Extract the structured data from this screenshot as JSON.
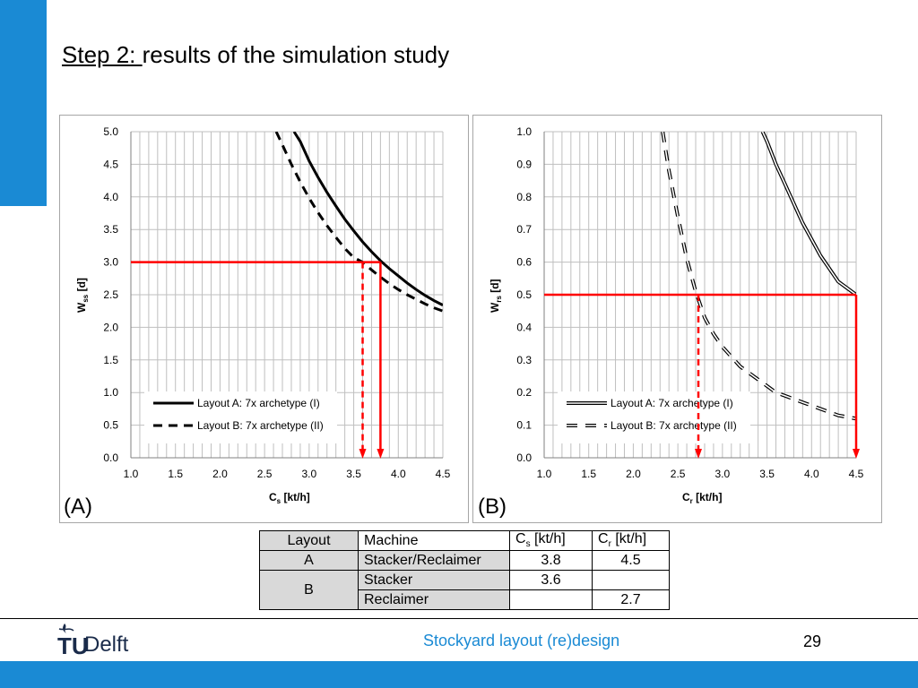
{
  "slide": {
    "title_prefix": "Step 2: ",
    "title_rest": "results of the simulation study",
    "footer_title": "Stockyard layout (re)design",
    "page_number": "29",
    "logo_t": "TU",
    "logo_text": "Delft",
    "label_a": "(A)",
    "label_b": "(B)"
  },
  "colors": {
    "accent": "#1a8ad4",
    "highlight": "#ff0000"
  },
  "chart_data": [
    {
      "type": "line",
      "panel": "A",
      "xlabel_main": "C",
      "xlabel_sub": "s",
      "xlabel_unit": " [kt/h]",
      "ylabel_main": "W",
      "ylabel_sub": "ss",
      "ylabel_unit": " [d]",
      "xlim": [
        1.0,
        4.5
      ],
      "ylim": [
        0.0,
        5.0
      ],
      "xticks": [
        "1.0",
        "1.5",
        "2.0",
        "2.5",
        "3.0",
        "3.5",
        "4.0",
        "4.5"
      ],
      "yticks": [
        "0.0",
        "0.5",
        "1.0",
        "1.5",
        "2.0",
        "2.5",
        "3.0",
        "3.5",
        "4.0",
        "4.5",
        "5.0"
      ],
      "grid": true,
      "legend_position": "bottom-left",
      "series": [
        {
          "name": "Layout A: 7x archetype (I)",
          "style": "solid",
          "x": [
            2.83,
            2.9,
            3.0,
            3.1,
            3.2,
            3.3,
            3.4,
            3.5,
            3.6,
            3.7,
            3.8,
            3.9,
            4.0,
            4.1,
            4.2,
            4.3,
            4.4,
            4.5
          ],
          "y": [
            5.0,
            4.85,
            4.55,
            4.3,
            4.07,
            3.86,
            3.66,
            3.48,
            3.31,
            3.16,
            3.02,
            2.9,
            2.79,
            2.68,
            2.58,
            2.49,
            2.41,
            2.34
          ]
        },
        {
          "name": "Layout B: 7x archetype (II)",
          "style": "dashed",
          "x": [
            2.63,
            2.7,
            2.8,
            2.9,
            3.0,
            3.1,
            3.2,
            3.3,
            3.4,
            3.5,
            3.6,
            3.7,
            3.8,
            3.9,
            4.0,
            4.1,
            4.2,
            4.3,
            4.4,
            4.5
          ],
          "y": [
            5.0,
            4.8,
            4.5,
            4.23,
            3.98,
            3.76,
            3.56,
            3.38,
            3.21,
            3.07,
            3.0,
            2.88,
            2.77,
            2.67,
            2.58,
            2.5,
            2.43,
            2.36,
            2.3,
            2.25
          ]
        }
      ],
      "annotations": {
        "target_y": 3.0,
        "marker_x": [
          3.6,
          3.8
        ],
        "marker_styles": [
          "dashed",
          "solid"
        ]
      }
    },
    {
      "type": "line",
      "panel": "B",
      "xlabel_main": "C",
      "xlabel_sub": "r",
      "xlabel_unit": " [kt/h]",
      "ylabel_main": "W",
      "ylabel_sub": "rs",
      "ylabel_unit": " [d]",
      "xlim": [
        1.0,
        4.5
      ],
      "ylim": [
        0.0,
        1.0
      ],
      "xticks": [
        "1.0",
        "1.5",
        "2.0",
        "2.5",
        "3.0",
        "3.5",
        "4.0",
        "4.5"
      ],
      "yticks": [
        "0.0",
        "0.1",
        "0.2",
        "0.3",
        "0.4",
        "0.5",
        "0.6",
        "0.7",
        "0.8",
        "0.9",
        "1.0"
      ],
      "grid": true,
      "legend_position": "bottom-left",
      "series": [
        {
          "name": "Layout A: 7x archetype (I)",
          "style": "double",
          "x": [
            3.45,
            3.5,
            3.6,
            3.7,
            3.8,
            3.9,
            4.0,
            4.1,
            4.2,
            4.3,
            4.4,
            4.5
          ],
          "y": [
            1.0,
            0.97,
            0.9,
            0.84,
            0.78,
            0.72,
            0.67,
            0.62,
            0.58,
            0.54,
            0.52,
            0.5
          ]
        },
        {
          "name": "Layout B: 7x archetype (II)",
          "style": "double-dashed",
          "x": [
            2.33,
            2.4,
            2.5,
            2.6,
            2.7,
            2.8,
            2.9,
            3.0,
            3.1,
            3.2,
            3.3,
            3.4,
            3.5,
            3.6,
            3.7,
            3.8,
            3.9,
            4.0,
            4.1,
            4.2,
            4.3,
            4.4,
            4.5
          ],
          "y": [
            1.0,
            0.88,
            0.74,
            0.61,
            0.51,
            0.43,
            0.38,
            0.34,
            0.31,
            0.28,
            0.26,
            0.24,
            0.22,
            0.2,
            0.19,
            0.18,
            0.17,
            0.16,
            0.15,
            0.14,
            0.13,
            0.125,
            0.12
          ]
        }
      ],
      "annotations": {
        "target_y": 0.5,
        "marker_x": [
          2.73,
          4.5
        ],
        "marker_styles": [
          "dashed",
          "solid"
        ]
      }
    }
  ],
  "table": {
    "headers": {
      "layout": "Layout",
      "machine": "Machine",
      "cs_main": "C",
      "cs_sub": "s",
      "cs_unit": " [kt/h]",
      "cr_main": "C",
      "cr_sub": "r",
      "cr_unit": " [kt/h]"
    },
    "rows": [
      {
        "layout": "A",
        "machine": "Stacker/Reclaimer",
        "cs": "3.8",
        "cr": "4.5"
      },
      {
        "layout": "B",
        "machine": "Stacker",
        "cs": "3.6",
        "cr": ""
      },
      {
        "layout": "",
        "machine": "Reclaimer",
        "cs": "",
        "cr": "2.7"
      }
    ]
  }
}
